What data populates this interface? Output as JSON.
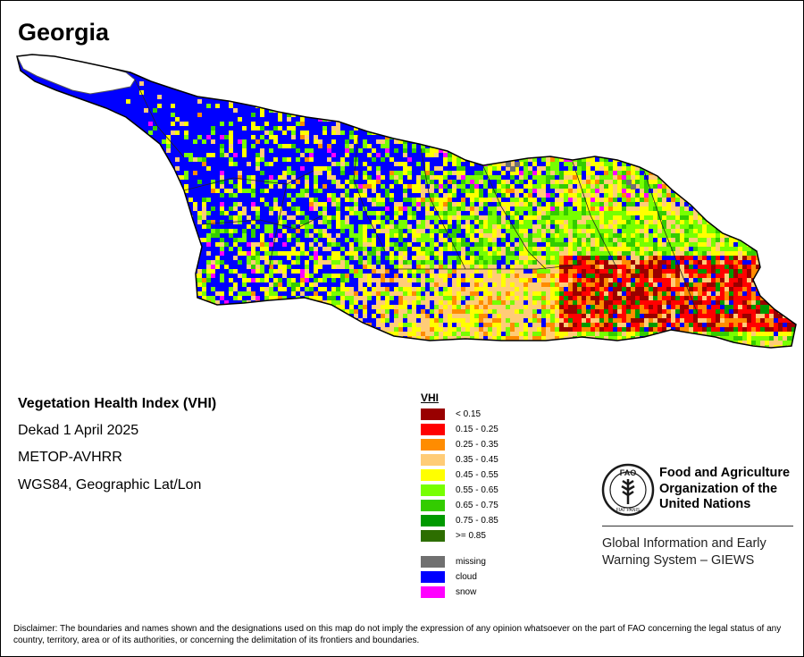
{
  "title": "Georgia",
  "info": {
    "index_name": "Vegetation Health Index (VHI)",
    "period": "Dekad 1 April 2025",
    "sensor": "METOP-AVHRR",
    "projection": "WGS84, Geographic Lat/Lon"
  },
  "legend": {
    "title": "VHI",
    "classes": [
      {
        "label": "< 0.15",
        "color": "#990000"
      },
      {
        "label": "0.15 - 0.25",
        "color": "#ff0000"
      },
      {
        "label": "0.25 - 0.35",
        "color": "#ff8c00"
      },
      {
        "label": "0.35 - 0.45",
        "color": "#ffcc77"
      },
      {
        "label": "0.45 - 0.55",
        "color": "#ffff00"
      },
      {
        "label": "0.55 - 0.65",
        "color": "#77ff00"
      },
      {
        "label": "0.65 - 0.75",
        "color": "#33cc00"
      },
      {
        "label": "0.75 - 0.85",
        "color": "#009900"
      },
      {
        "label": ">= 0.85",
        "color": "#2d6e00"
      }
    ],
    "special": [
      {
        "label": "missing",
        "color": "#707070"
      },
      {
        "label": "cloud",
        "color": "#0000ff"
      },
      {
        "label": "snow",
        "color": "#ff00ff"
      }
    ]
  },
  "organization": {
    "emblem_text": "FAO",
    "emblem_motto": "FIAT PANIS",
    "name_lines": [
      "Food and Agriculture",
      "Organization of the",
      "United Nations"
    ],
    "system_lines": [
      "Global Information and Early",
      "Warning System – GIEWS"
    ]
  },
  "disclaimer": "Disclaimer: The boundaries and names shown and the designations used on this map do not imply the expression of any opinion whatsoever on the part of FAO concerning the legal status of any country, territory, area or of its authorities, or concerning the delimitation of its frontiers and boundaries."
}
